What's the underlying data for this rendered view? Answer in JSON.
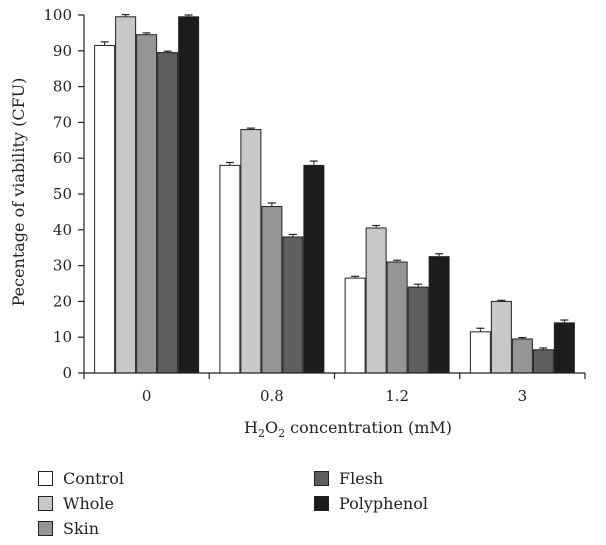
{
  "chart_data": {
    "type": "bar",
    "title": "",
    "xlabel": {
      "pre": "H",
      "sub1": "2",
      "mid": "O",
      "sub2": "2",
      "post": " concentration (mM)"
    },
    "ylabel": "Pecentage of viability (CFU)",
    "ylim": [
      0,
      100
    ],
    "yticks": [
      "0",
      "10",
      "20",
      "30",
      "40",
      "50",
      "60",
      "70",
      "80",
      "90",
      "100"
    ],
    "categories": [
      "0",
      "0.8",
      "1.2",
      "3"
    ],
    "series": [
      {
        "name": "Control",
        "color": "#ffffff",
        "values": [
          91.5,
          58,
          26.5,
          11.5
        ],
        "errors": [
          1.0,
          0.8,
          0.5,
          1.0
        ]
      },
      {
        "name": "Whole",
        "color": "#c8c8c8",
        "values": [
          99.5,
          68,
          40.5,
          20
        ],
        "errors": [
          0.6,
          0.4,
          0.7,
          0.3
        ]
      },
      {
        "name": "Skin",
        "color": "#959595",
        "values": [
          94.5,
          46.5,
          31,
          9.5
        ],
        "errors": [
          0.5,
          1.0,
          0.5,
          0.4
        ]
      },
      {
        "name": "Flesh",
        "color": "#5e5e5e",
        "values": [
          89.5,
          38,
          24,
          6.5
        ],
        "errors": [
          0.4,
          0.7,
          0.8,
          0.5
        ]
      },
      {
        "name": "Polyphenol",
        "color": "#1c1c1c",
        "values": [
          99.5,
          58,
          32.5,
          14
        ],
        "errors": [
          0.5,
          1.2,
          0.8,
          0.8
        ]
      }
    ],
    "legend_placement": "bottom",
    "grid": false
  }
}
